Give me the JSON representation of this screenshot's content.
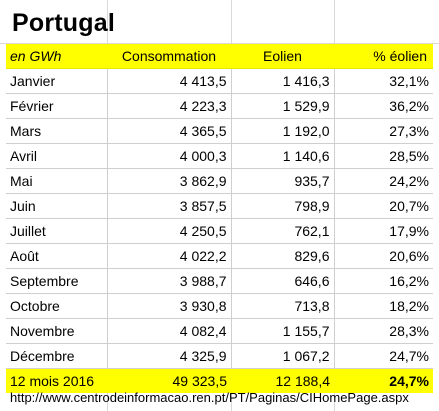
{
  "title": "Portugal",
  "header": {
    "unit": "en GWh",
    "col_consumption": "Consommation",
    "col_wind": "Eolien",
    "col_share": "% éolien"
  },
  "rows": [
    {
      "month": "Janvier",
      "consumption": "4 413,5",
      "wind": "1 416,3",
      "share": "32,1%"
    },
    {
      "month": "Février",
      "consumption": "4 223,3",
      "wind": "1 529,9",
      "share": "36,2%"
    },
    {
      "month": "Mars",
      "consumption": "4 365,5",
      "wind": "1 192,0",
      "share": "27,3%"
    },
    {
      "month": "Avril",
      "consumption": "4 000,3",
      "wind": "1 140,6",
      "share": "28,5%"
    },
    {
      "month": "Mai",
      "consumption": "3 862,9",
      "wind": "935,7",
      "share": "24,2%"
    },
    {
      "month": "Juin",
      "consumption": "3 857,5",
      "wind": "798,9",
      "share": "20,7%"
    },
    {
      "month": "Juillet",
      "consumption": "4 250,5",
      "wind": "762,1",
      "share": "17,9%"
    },
    {
      "month": "Août",
      "consumption": "4 022,2",
      "wind": "829,6",
      "share": "20,6%"
    },
    {
      "month": "Septembre",
      "consumption": "3 988,7",
      "wind": "646,6",
      "share": "16,2%"
    },
    {
      "month": "Octobre",
      "consumption": "3 930,8",
      "wind": "713,8",
      "share": "18,2%"
    },
    {
      "month": "Novembre",
      "consumption": "4 082,4",
      "wind": "1 155,7",
      "share": "28,3%"
    },
    {
      "month": "Décembre",
      "consumption": "4 325,9",
      "wind": "1 067,2",
      "share": "24,7%"
    }
  ],
  "total": {
    "label": "12 mois 2016",
    "consumption": "49 323,5",
    "wind": "12 188,4",
    "share": "24,7%"
  },
  "source": "http://www.centrodeinformacao.ren.pt/PT/Paginas/CIHomePage.aspx",
  "colors": {
    "highlight": "#ffff00",
    "gridline": "#cfcfcf",
    "text": "#000000"
  }
}
